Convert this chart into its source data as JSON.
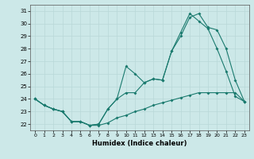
{
  "xlabel": "Humidex (Indice chaleur)",
  "bg_color": "#cce8e8",
  "grid_color": "#b8d8d8",
  "line_color": "#1a7a6e",
  "xlim": [
    -0.5,
    23.5
  ],
  "ylim": [
    21.5,
    31.5
  ],
  "xticks": [
    0,
    1,
    2,
    3,
    4,
    5,
    6,
    7,
    8,
    9,
    10,
    11,
    12,
    13,
    14,
    15,
    16,
    17,
    18,
    19,
    20,
    21,
    22,
    23
  ],
  "yticks": [
    22,
    23,
    24,
    25,
    26,
    27,
    28,
    29,
    30,
    31
  ],
  "line1_x": [
    0,
    1,
    2,
    3,
    4,
    5,
    6,
    7,
    8,
    9,
    10,
    11,
    12,
    13,
    14,
    15,
    16,
    17,
    18,
    19,
    20,
    21,
    22,
    23
  ],
  "line1_y": [
    24.0,
    23.5,
    23.2,
    23.0,
    22.2,
    22.2,
    21.9,
    21.9,
    22.1,
    22.5,
    22.7,
    23.0,
    23.2,
    23.5,
    23.7,
    23.9,
    24.1,
    24.3,
    24.5,
    24.5,
    24.5,
    24.5,
    24.5,
    23.8
  ],
  "line2_x": [
    0,
    1,
    2,
    3,
    4,
    5,
    6,
    7,
    8,
    9,
    10,
    11,
    12,
    13,
    14,
    15,
    16,
    17,
    18,
    19,
    20,
    21,
    22,
    23
  ],
  "line2_y": [
    24.0,
    23.5,
    23.2,
    23.0,
    22.2,
    22.2,
    21.9,
    22.0,
    23.2,
    24.0,
    26.6,
    26.0,
    25.3,
    25.6,
    25.5,
    27.8,
    29.3,
    30.8,
    30.2,
    29.6,
    28.0,
    26.2,
    24.2,
    23.8
  ],
  "line3_x": [
    0,
    1,
    2,
    3,
    4,
    5,
    6,
    7,
    8,
    9,
    10,
    11,
    12,
    13,
    14,
    15,
    16,
    17,
    18,
    19,
    20,
    21,
    22,
    23
  ],
  "line3_y": [
    24.0,
    23.5,
    23.2,
    23.0,
    22.2,
    22.2,
    21.9,
    22.0,
    23.2,
    24.0,
    24.5,
    24.5,
    25.3,
    25.6,
    25.5,
    27.8,
    29.0,
    30.5,
    30.8,
    29.7,
    29.5,
    28.0,
    25.5,
    23.8
  ]
}
